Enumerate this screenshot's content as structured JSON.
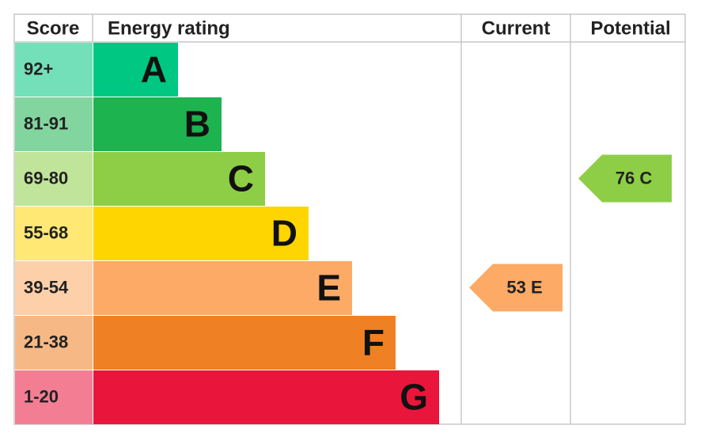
{
  "header": {
    "score": "Score",
    "energy_rating": "Energy rating",
    "current": "Current",
    "potential": "Potential"
  },
  "bands": [
    {
      "score": "92+",
      "letter": "A",
      "color": "#00c781"
    },
    {
      "score": "81-91",
      "letter": "B",
      "color": "#1db34f"
    },
    {
      "score": "69-80",
      "letter": "C",
      "color": "#8dce46"
    },
    {
      "score": "55-68",
      "letter": "D",
      "color": "#ffd500"
    },
    {
      "score": "39-54",
      "letter": "E",
      "color": "#fcaa65"
    },
    {
      "score": "21-38",
      "letter": "F",
      "color": "#ef8023"
    },
    {
      "score": "1-20",
      "letter": "G",
      "color": "#e9153b"
    }
  ],
  "current": {
    "label": "53 E",
    "color": "#fcaa65"
  },
  "potential": {
    "label": "76 C",
    "color": "#8dce46"
  }
}
